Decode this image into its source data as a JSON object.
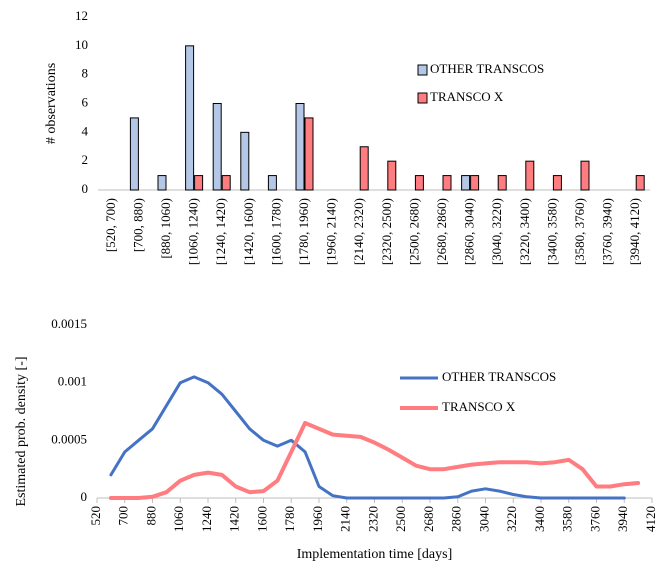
{
  "chart_data": [
    {
      "type": "bar",
      "ylabel": "# observations",
      "categories": [
        "[520, 700)",
        "[700, 880)",
        "[880, 1060)",
        "[1060, 1240)",
        "[1240, 1420)",
        "[1420, 1600)",
        "[1600, 1780)",
        "[1780, 1960)",
        "[1960, 2140)",
        "[2140, 2320)",
        "[2320, 2500)",
        "[2500, 2680)",
        "[2680, 2860)",
        "[2860, 3040)",
        "[3040, 3220)",
        "[3220, 3400)",
        "[3400, 3580)",
        "[3580, 3760)",
        "[3760, 3940)",
        "[3940, 4120)"
      ],
      "series": [
        {
          "name": "OTHER TRANSCOS",
          "color": "#b4c7e7",
          "values": [
            0,
            5,
            1,
            10,
            6,
            4,
            1,
            6,
            0,
            0,
            0,
            0,
            0,
            1,
            0,
            0,
            0,
            0,
            0,
            0
          ]
        },
        {
          "name": "TRANSCO X",
          "color": "#ff7c80",
          "values": [
            0,
            0,
            0,
            1,
            1,
            0,
            0,
            5,
            0,
            3,
            2,
            1,
            1,
            1,
            1,
            2,
            1,
            2,
            0,
            1
          ]
        }
      ],
      "ylim": [
        0,
        12
      ],
      "yticks": [
        0,
        2,
        4,
        6,
        8,
        10,
        12
      ],
      "grid": false,
      "legend": "upper-right"
    },
    {
      "type": "line",
      "xlabel": "Implementation time [days]",
      "ylabel": "Estimated prob. density [-]",
      "x": [
        610,
        700,
        790,
        880,
        970,
        1060,
        1150,
        1240,
        1330,
        1420,
        1510,
        1600,
        1690,
        1780,
        1870,
        1960,
        2050,
        2140,
        2230,
        2320,
        2410,
        2500,
        2590,
        2680,
        2770,
        2860,
        2950,
        3040,
        3130,
        3220,
        3310,
        3400,
        3490,
        3580,
        3670,
        3760,
        3850,
        3940,
        4030
      ],
      "series": [
        {
          "name": "OTHER TRANSCOS",
          "color": "#4472c4",
          "values": [
            0.0002,
            0.0004,
            0.0005,
            0.0006,
            0.0008,
            0.001,
            0.00105,
            0.001,
            0.0009,
            0.00075,
            0.0006,
            0.0005,
            0.00045,
            0.0005,
            0.0004,
            0.0001,
            2e-05,
            0,
            0,
            0,
            0,
            0,
            0,
            0,
            0,
            1e-05,
            6e-05,
            8e-05,
            6e-05,
            3e-05,
            1e-05,
            0,
            0,
            0,
            0,
            0,
            0,
            0,
            null
          ]
        },
        {
          "name": "TRANSCO X",
          "color": "#ff7c80",
          "values": [
            0,
            0,
            0,
            1e-05,
            5e-05,
            0.00015,
            0.0002,
            0.00022,
            0.0002,
            0.0001,
            5e-05,
            6e-05,
            0.00015,
            0.0004,
            0.00065,
            0.0006,
            0.00055,
            0.00054,
            0.00053,
            0.00048,
            0.00042,
            0.00035,
            0.00028,
            0.00025,
            0.00025,
            0.00027,
            0.00029,
            0.0003,
            0.00031,
            0.00031,
            0.00031,
            0.0003,
            0.00031,
            0.00033,
            0.00025,
            0.0001,
            0.0001,
            0.00012,
            0.00013
          ]
        }
      ],
      "xlim": [
        520,
        4120
      ],
      "xticks": [
        520,
        700,
        880,
        1060,
        1240,
        1420,
        1600,
        1780,
        1960,
        2140,
        2320,
        2500,
        2680,
        2860,
        3040,
        3220,
        3400,
        3580,
        3760,
        3940,
        4120
      ],
      "ylim": [
        0,
        0.0015
      ],
      "yticks": [
        0,
        0.0005,
        0.001,
        0.0015
      ],
      "grid": false,
      "legend": "upper-right"
    }
  ]
}
